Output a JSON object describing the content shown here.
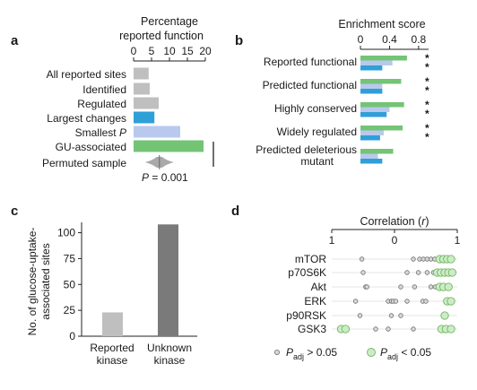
{
  "colors": {
    "gray": "#bfbfbf",
    "blue": "#2f9fd8",
    "light_blue": "#b9c9ee",
    "green": "#74c476",
    "dark_gray": "#7a7a7a",
    "point_gray_fill": "#d9d9d9",
    "point_green_fill": "#cfeacb",
    "point_green_stroke": "#6dbb5b",
    "point_gray_stroke": "#6e6e6e"
  },
  "chart_data": [
    {
      "panel": "a",
      "type": "bar",
      "orientation": "horizontal",
      "title": "Percentage\nreported function",
      "xlim": [
        0,
        20
      ],
      "xticks": [
        "0",
        "5",
        "10",
        "15",
        "20"
      ],
      "categories": [
        "All reported sites",
        "Identified",
        "Regulated",
        "Largest changes",
        "Smallest P",
        "GU-associated",
        "Permuted sample"
      ],
      "values": [
        4.2,
        4.5,
        7.0,
        5.8,
        13.0,
        19.5,
        null
      ],
      "bar_colors": [
        "gray",
        "gray",
        "gray",
        "blue",
        "light_blue",
        "green",
        "gray"
      ],
      "permuted_distribution": {
        "center": 7.2,
        "min": 3.2,
        "max": 11.2
      },
      "p_value_text": "P = 0.001"
    },
    {
      "panel": "b",
      "type": "bar",
      "orientation": "horizontal",
      "title": "Enrichment score",
      "xlim": [
        0,
        0.9
      ],
      "xticks": [
        "0",
        "0.4",
        "0.8"
      ],
      "categories": [
        "Reported functional",
        "Predicted functional",
        "Highly conserved",
        "Widely regulated",
        "Predicted deleterious mutant"
      ],
      "category_lines": [
        [
          "Reported functional"
        ],
        [
          "Predicted functional"
        ],
        [
          "Highly conserved"
        ],
        [
          "Widely regulated"
        ],
        [
          "Predicted deleterious",
          "mutant"
        ]
      ],
      "series": [
        {
          "color": "green",
          "values": [
            0.64,
            0.56,
            0.6,
            0.58,
            0.45
          ]
        },
        {
          "color": "light_blue",
          "values": [
            0.44,
            0.3,
            0.4,
            0.32,
            0.24
          ]
        },
        {
          "color": "blue",
          "values": [
            0.3,
            0.3,
            0.36,
            0.27,
            0.3
          ]
        }
      ],
      "significance": [
        "**",
        "**",
        "**",
        "**",
        ""
      ]
    },
    {
      "panel": "c",
      "type": "bar",
      "ylabel": "No. of glucose-uptake-\nassociated sites",
      "ylim": [
        0,
        110
      ],
      "yticks": [
        "0",
        "25",
        "50",
        "75",
        "100"
      ],
      "categories": [
        "Reported\nkinase",
        "Unknown\nkinase"
      ],
      "values": [
        23,
        108
      ],
      "bar_colors": [
        "gray",
        "dark_gray"
      ]
    },
    {
      "panel": "d",
      "type": "scatter",
      "title": "Correlation (r)",
      "xlim": [
        -1,
        1
      ],
      "xticks": [
        "1",
        "0",
        "1"
      ],
      "categories": [
        "mTOR",
        "p70S6K",
        "Akt",
        "ERK",
        "p90RSK",
        "GSK3"
      ],
      "series": [
        {
          "name": "non-significant",
          "points": {
            "mTOR": [
              -0.52,
              0.3,
              0.4,
              0.46,
              0.52,
              0.58,
              0.64
            ],
            "p70S6K": [
              -0.5,
              0.2,
              0.38,
              0.52,
              0.62
            ],
            "Akt": [
              -0.46,
              -0.44,
              0.1,
              0.32,
              0.58,
              0.65
            ],
            "ERK": [
              -0.62,
              -0.1,
              -0.05,
              -0.02,
              0.02,
              0.2,
              0.45,
              0.5
            ],
            "p90RSK": [
              -0.55,
              -0.05,
              0.1
            ],
            "GSK3": [
              -0.3,
              -0.1,
              0.3
            ]
          }
        },
        {
          "name": "significant",
          "points": {
            "mTOR": [
              0.72,
              0.78,
              0.84,
              0.9
            ],
            "p70S6K": [
              0.68,
              0.74,
              0.8,
              0.86,
              0.92
            ],
            "Akt": [
              0.72,
              0.78,
              0.86
            ],
            "ERK": [
              0.84,
              0.9
            ],
            "p90RSK": [
              0.8
            ],
            "GSK3": [
              -0.85,
              -0.78,
              0.75,
              0.82,
              0.9
            ]
          }
        }
      ],
      "legend": [
        {
          "text_prefix": "P",
          "subscript": "adj",
          "text_suffix": " > 0.05",
          "marker": "gray"
        },
        {
          "text_prefix": "P",
          "subscript": "adj",
          "text_suffix": " < 0.05",
          "marker": "green"
        }
      ]
    }
  ]
}
